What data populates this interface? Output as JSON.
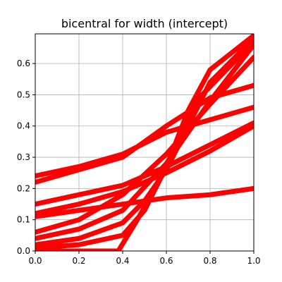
{
  "chart_data": {
    "type": "line",
    "title": "bicentral for width (intercept)",
    "xlabel": "",
    "ylabel": "",
    "xlim": [
      0.0,
      1.0
    ],
    "ylim": [
      0.0,
      0.695
    ],
    "grid": true,
    "x_ticks": [
      0.0,
      0.2,
      0.4,
      0.6,
      0.8,
      1.0
    ],
    "x_tick_labels": [
      "0.0",
      "0.2",
      "0.4",
      "0.6",
      "0.8",
      "1.0"
    ],
    "y_ticks": [
      0.0,
      0.1,
      0.2,
      0.3,
      0.4,
      0.5,
      0.6
    ],
    "y_tick_labels": [
      "0.0",
      "0.1",
      "0.2",
      "0.3",
      "0.4",
      "0.5",
      "0.6"
    ],
    "line_color": "#ff0000",
    "series": [
      {
        "x": [
          0.0,
          0.2,
          0.4,
          0.6,
          0.8,
          1.0
        ],
        "y": [
          0.24,
          0.27,
          0.31,
          0.38,
          0.42,
          0.46
        ]
      },
      {
        "x": [
          0.0,
          0.2,
          0.4,
          0.6,
          0.8,
          1.0
        ],
        "y": [
          0.22,
          0.26,
          0.3,
          0.4,
          0.49,
          0.53
        ]
      },
      {
        "x": [
          0.0,
          0.2,
          0.4,
          0.6,
          0.8,
          1.0
        ],
        "y": [
          0.11,
          0.13,
          0.15,
          0.17,
          0.18,
          0.2
        ]
      },
      {
        "x": [
          0.0,
          0.2,
          0.4,
          0.6,
          0.8,
          1.0
        ],
        "y": [
          0.15,
          0.18,
          0.21,
          0.27,
          0.34,
          0.41
        ]
      },
      {
        "x": [
          0.0,
          0.2,
          0.4,
          0.6,
          0.8,
          1.0
        ],
        "y": [
          0.12,
          0.15,
          0.19,
          0.25,
          0.32,
          0.4
        ]
      },
      {
        "x": [
          0.0,
          0.2,
          0.4,
          0.6,
          0.8,
          1.0
        ],
        "y": [
          0.06,
          0.1,
          0.18,
          0.31,
          0.47,
          0.62
        ]
      },
      {
        "x": [
          0.0,
          0.2,
          0.4,
          0.6,
          0.8,
          1.0
        ],
        "y": [
          0.04,
          0.07,
          0.13,
          0.28,
          0.48,
          0.66
        ]
      },
      {
        "x": [
          0.0,
          0.2,
          0.4,
          0.5,
          0.6,
          0.7,
          0.8,
          1.0
        ],
        "y": [
          0.02,
          0.04,
          0.09,
          0.16,
          0.26,
          0.4,
          0.54,
          0.68
        ]
      },
      {
        "x": [
          0.0,
          0.2,
          0.4,
          0.5,
          0.6,
          0.7,
          0.8,
          1.0
        ],
        "y": [
          0.01,
          0.02,
          0.05,
          0.13,
          0.27,
          0.45,
          0.58,
          0.69
        ]
      },
      {
        "x": [
          0.0,
          0.2,
          0.38,
          0.45,
          0.55,
          0.65,
          0.75,
          1.0
        ],
        "y": [
          0.0,
          0.0,
          0.0,
          0.08,
          0.2,
          0.34,
          0.49,
          0.67
        ]
      }
    ]
  }
}
